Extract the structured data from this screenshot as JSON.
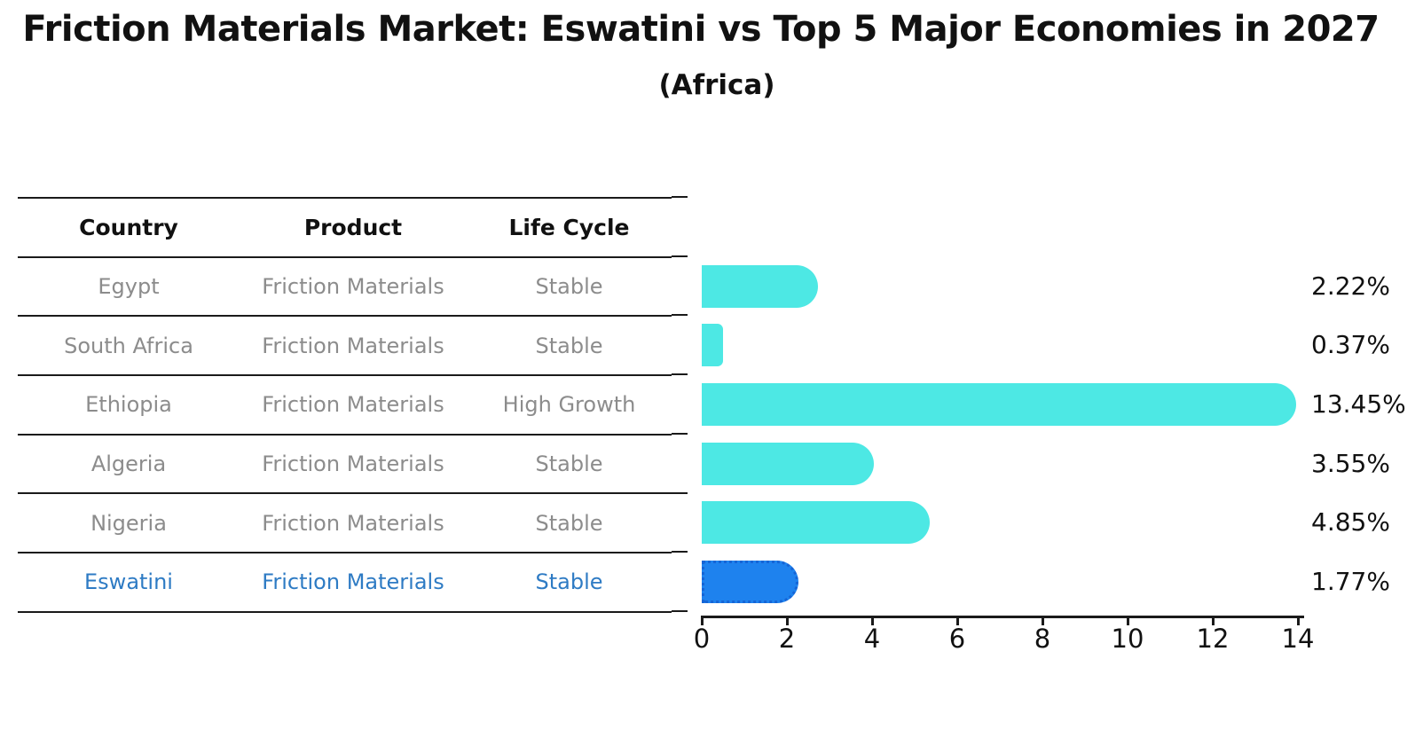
{
  "title": "Friction Materials Market: Eswatini vs Top 5 Major Economies in 2027",
  "subtitle": "(Africa)",
  "table": {
    "headers": {
      "country": "Country",
      "product": "Product",
      "life_cycle": "Life Cycle"
    },
    "rows": [
      {
        "country": "Egypt",
        "product": "Friction Materials",
        "life_cycle": "Stable"
      },
      {
        "country": "South Africa",
        "product": "Friction Materials",
        "life_cycle": "Stable"
      },
      {
        "country": "Ethiopia",
        "product": "Friction Materials",
        "life_cycle": "High Growth"
      },
      {
        "country": "Algeria",
        "product": "Friction Materials",
        "life_cycle": "Stable"
      },
      {
        "country": "Nigeria",
        "product": "Friction Materials",
        "life_cycle": "Stable"
      },
      {
        "country": "Eswatini",
        "product": "Friction Materials",
        "life_cycle": "Stable"
      }
    ],
    "highlight_row": "Eswatini"
  },
  "chart_data": {
    "type": "bar",
    "orientation": "horizontal",
    "title": "Friction Materials Market: Eswatini vs Top 5 Major Economies in 2027",
    "subtitle": "(Africa)",
    "categories": [
      "Egypt",
      "South Africa",
      "Ethiopia",
      "Algeria",
      "Nigeria",
      "Eswatini"
    ],
    "values": [
      2.22,
      0.37,
      13.45,
      3.55,
      4.85,
      1.77
    ],
    "value_labels": [
      "2.22%",
      "0.37%",
      "13.45%",
      "3.55%",
      "4.85%",
      "1.77%"
    ],
    "xlabel": "",
    "ylabel": "",
    "xlim": [
      0,
      14
    ],
    "x_ticks": [
      "0",
      "2",
      "4",
      "6",
      "8",
      "10",
      "12",
      "14"
    ],
    "grid": false,
    "legend": false,
    "bar_color": "#4DE8E4",
    "highlight_index": 5,
    "highlight_color": "#1E82EE",
    "highlight_border_color": "#1565D6",
    "highlight_text_color": "#2E7BC4"
  },
  "colors": {
    "background": "#FFFFFF",
    "text_strong": "#111111",
    "text_muted": "#8C8C8C",
    "line": "#1A1A1A"
  }
}
